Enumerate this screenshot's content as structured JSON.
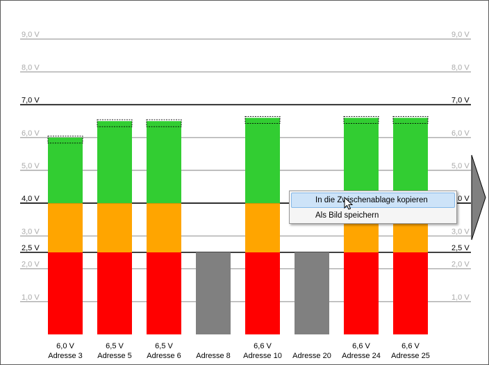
{
  "chart_data": {
    "type": "bar",
    "y_unit": "V",
    "ylim": [
      0,
      9.0
    ],
    "y_ticks": [
      {
        "value": 1.0,
        "label": "1,0 V",
        "strong": false
      },
      {
        "value": 2.0,
        "label": "2,0 V",
        "strong": false
      },
      {
        "value": 2.5,
        "label": "2,5 V",
        "strong": true
      },
      {
        "value": 3.0,
        "label": "3,0 V",
        "strong": false
      },
      {
        "value": 4.0,
        "label": "4,0 V",
        "strong": true
      },
      {
        "value": 5.0,
        "label": "5,0 V",
        "strong": false
      },
      {
        "value": 6.0,
        "label": "6,0 V",
        "strong": false
      },
      {
        "value": 7.0,
        "label": "7,0 V",
        "strong": true
      },
      {
        "value": 8.0,
        "label": "8,0 V",
        "strong": false
      },
      {
        "value": 9.0,
        "label": "9,0 V",
        "strong": false
      }
    ],
    "thresholds": {
      "low": 2.5,
      "mid": 4.0,
      "high": 7.0
    },
    "bars": [
      {
        "category": "Adresse 3",
        "value": 6.0,
        "value_label": "6,0 V",
        "active": true
      },
      {
        "category": "Adresse 5",
        "value": 6.5,
        "value_label": "6,5 V",
        "active": true
      },
      {
        "category": "Adresse 6",
        "value": 6.5,
        "value_label": "6,5 V",
        "active": true
      },
      {
        "category": "Adresse 8",
        "value": 2.5,
        "value_label": "",
        "active": false
      },
      {
        "category": "Adresse 10",
        "value": 6.6,
        "value_label": "6,6 V",
        "active": true
      },
      {
        "category": "Adresse 20",
        "value": 2.5,
        "value_label": "",
        "active": false
      },
      {
        "category": "Adresse 24",
        "value": 6.6,
        "value_label": "6,6 V",
        "active": true
      },
      {
        "category": "Adresse 25",
        "value": 6.6,
        "value_label": "6,6 V",
        "active": true
      }
    ],
    "grid": true
  },
  "colors": {
    "zone_low": "#ff0000",
    "zone_mid": "#ffa500",
    "zone_high": "#32cd32",
    "inactive": "#808080",
    "grid_light": "#a9a9a9",
    "grid_strong": "#000000",
    "tick_light": "#a9a9a9",
    "tick_strong": "#000000"
  },
  "context_menu": {
    "items": [
      {
        "label": "In die Zwischenablage kopieren",
        "highlighted": true
      },
      {
        "label": "Als Bild speichern",
        "highlighted": false
      }
    ]
  },
  "icons": {
    "scroll_arrow": "triangle-right-icon",
    "cursor": "mouse-pointer-icon"
  }
}
